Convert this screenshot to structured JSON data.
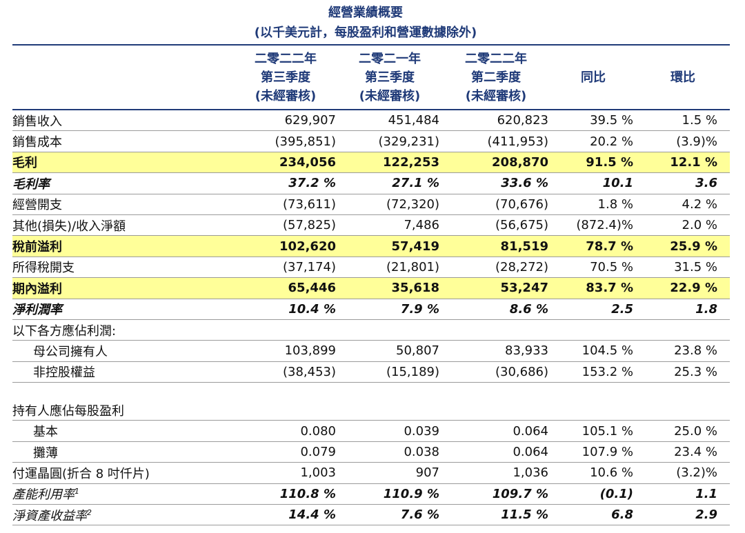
{
  "title": "經營業績概要",
  "subtitle": "(以千美元計，每股盈利和營運數據除外)",
  "table": {
    "header": [
      [
        "二零二二年",
        "第三季度",
        "(未經審核)"
      ],
      [
        "二零二一年",
        "第三季度",
        "(未經審核)"
      ],
      [
        "二零二二年",
        "第二季度",
        "(未經審核)"
      ],
      [
        "同比"
      ],
      [
        "環比"
      ]
    ],
    "rows": [
      {
        "label": "銷售收入",
        "cells": [
          "629,907",
          "451,484",
          "620,823",
          "39.5 %",
          "1.5 %"
        ]
      },
      {
        "label": "銷售成本",
        "cells": [
          "(395,851)",
          "(329,231)",
          "(411,953)",
          "20.2 %",
          "(3.9)%"
        ]
      },
      {
        "label": "毛利",
        "cells": [
          "234,056",
          "122,253",
          "208,870",
          "91.5 %",
          "12.1 %"
        ]
      },
      {
        "label": "毛利率",
        "cells": [
          "37.2 %",
          "27.1 %",
          "33.6 %",
          "10.1",
          "3.6"
        ]
      },
      {
        "label": "經營開支",
        "cells": [
          "(73,611)",
          "(72,320)",
          "(70,676)",
          "1.8 %",
          "4.2 %"
        ]
      },
      {
        "label": "其他(損失)/收入淨額",
        "cells": [
          "(57,825)",
          "7,486",
          "(56,675)",
          "(872.4)%",
          "2.0 %"
        ]
      },
      {
        "label": "稅前溢利",
        "cells": [
          "102,620",
          "57,419",
          "81,519",
          "78.7 %",
          "25.9 %"
        ]
      },
      {
        "label": "所得稅開支",
        "cells": [
          "(37,174)",
          "(21,801)",
          "(28,272)",
          "70.5 %",
          "31.5 %"
        ]
      },
      {
        "label": "期內溢利",
        "cells": [
          "65,446",
          "35,618",
          "53,247",
          "83.7 %",
          "22.9 %"
        ]
      },
      {
        "label": "淨利潤率",
        "cells": [
          "10.4 %",
          "7.9 %",
          "8.6 %",
          "2.5",
          "1.8"
        ]
      },
      {
        "label": "以下各方應佔利潤:"
      },
      {
        "label": "母公司擁有人",
        "cells": [
          "103,899",
          "50,807",
          "83,933",
          "104.5 %",
          "23.8 %"
        ]
      },
      {
        "label": "非控股權益",
        "cells": [
          "(38,453)",
          "(15,189)",
          "(30,686)",
          "153.2 %",
          "25.3 %"
        ]
      },
      {
        "label": "持有人應佔每股盈利"
      },
      {
        "label": "基本",
        "cells": [
          "0.080",
          "0.039",
          "0.064",
          "105.1 %",
          "25.0 %"
        ]
      },
      {
        "label": "攤薄",
        "cells": [
          "0.079",
          "0.038",
          "0.064",
          "107.9 %",
          "23.4 %"
        ]
      },
      {
        "label": "付運晶圓(折合 8 吋仟片)",
        "cells": [
          "1,003",
          "907",
          "1,036",
          "10.6 %",
          "(3.2)%"
        ]
      },
      {
        "label": "產能利用率",
        "sup": "1",
        "cells": [
          "110.8 %",
          "110.9 %",
          "109.7 %",
          "(0.1)",
          "1.1"
        ]
      },
      {
        "label": "淨資產收益率",
        "sup": "2",
        "cells": [
          "14.4 %",
          "7.6 %",
          "11.5 %",
          "6.8",
          "2.9"
        ]
      }
    ]
  }
}
